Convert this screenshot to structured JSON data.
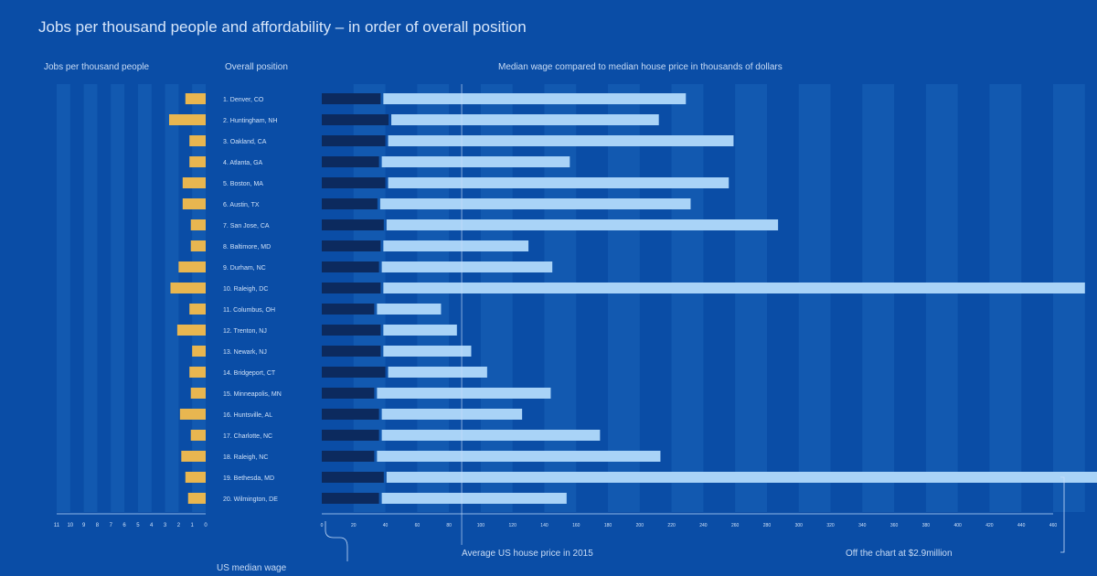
{
  "header": {
    "subtitle": "Jobs per thousand people and affordability – in order of overall position",
    "col_jobs": "Jobs per thousand people",
    "col_rank": "Overall position",
    "col_wage": "Median wage compared to median house price in thousands of dollars"
  },
  "footer": {
    "avg_house_price": "Average US house price in 2015",
    "off_chart": "Off the chart at $2.9million",
    "min_wage": "US median wage"
  },
  "colors": {
    "background": "#0a4da6",
    "stripe": "#1a64b8",
    "jobs_bar": "#e8b650",
    "wage_bar": "#0c2a5e",
    "house_bar": "#a9d3f7",
    "text": "#cfe1f8"
  },
  "chart_data": {
    "type": "bar",
    "categories": [
      "1. Denver, CO",
      "2. Huntingham, NH",
      "3. Oakland, CA",
      "4. Atlanta, GA",
      "5. Boston, MA",
      "6. Austin, TX",
      "7. San Jose, CA",
      "8. Baltimore, MD",
      "9. Durham, NC",
      "10. Raleigh, DC",
      "11. Columbus, OH",
      "12. Trenton, NJ",
      "13. Newark, NJ",
      "14. Bridgeport, CT",
      "15. Minneapolis, MN",
      "16. Huntsville, AL",
      "17. Charlotte, NC",
      "18. Raleigh, NC",
      "19. Bethesda, MD",
      "20. Wilmington, DE"
    ],
    "jobs": {
      "values": [
        1.5,
        2.7,
        1.2,
        1.2,
        1.7,
        1.7,
        1.1,
        1.1,
        2.0,
        2.6,
        1.2,
        2.1,
        1.0,
        1.2,
        1.1,
        1.9,
        1.1,
        1.8,
        1.5,
        1.3
      ],
      "ticks": [
        "11",
        "10",
        "9",
        "8",
        "7",
        "6",
        "5",
        "4",
        "3",
        "2",
        "1",
        "0"
      ],
      "xlim": [
        0,
        11
      ]
    },
    "median_wage": [
      37,
      42,
      40,
      36,
      40,
      35,
      39,
      37,
      36,
      37,
      33,
      37,
      37,
      40,
      33,
      36,
      36,
      33,
      39,
      36
    ],
    "house_price": [
      192,
      170,
      219,
      120,
      216,
      197,
      248,
      93,
      109,
      443,
      42,
      48,
      57,
      64,
      111,
      90,
      139,
      180,
      628,
      118
    ],
    "wage_ticks": [
      "0",
      "20",
      "40",
      "60",
      "80",
      "100",
      "120",
      "140",
      "160",
      "180",
      "200",
      "220",
      "240",
      "260",
      "280",
      "300",
      "320",
      "340",
      "360",
      "380",
      "400",
      "420",
      "440",
      "460"
    ],
    "xlim": [
      0,
      460
    ],
    "average_house_price": 88,
    "off_chart_value": 2900
  }
}
